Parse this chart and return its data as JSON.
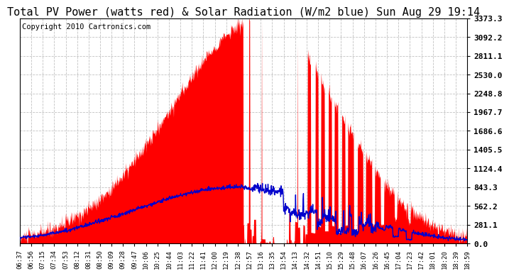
{
  "title": "Total PV Power (watts red) & Solar Radiation (W/m2 blue) Sun Aug 29 19:14",
  "copyright": "Copyright 2010 Cartronics.com",
  "y_max": 3373.3,
  "y_min": 0.0,
  "y_ticks": [
    0.0,
    281.1,
    562.2,
    843.3,
    1124.4,
    1405.5,
    1686.6,
    1967.7,
    2248.8,
    2530.0,
    2811.1,
    3092.2,
    3373.3
  ],
  "x_labels": [
    "06:37",
    "06:56",
    "07:15",
    "07:34",
    "07:53",
    "08:12",
    "08:31",
    "08:50",
    "09:09",
    "09:28",
    "09:47",
    "10:06",
    "10:25",
    "10:44",
    "11:03",
    "11:22",
    "11:41",
    "12:00",
    "12:19",
    "12:38",
    "12:57",
    "13:16",
    "13:35",
    "13:54",
    "14:13",
    "14:32",
    "14:51",
    "15:10",
    "15:29",
    "15:48",
    "16:07",
    "16:26",
    "16:45",
    "17:04",
    "17:23",
    "17:42",
    "18:01",
    "18:20",
    "18:39",
    "18:59"
  ],
  "bg_color": "#ffffff",
  "plot_bg_color": "#ffffff",
  "grid_color": "#bbbbbb",
  "red_color": "#ff0000",
  "blue_color": "#0000cc",
  "fill_color": "#ff0000",
  "title_fontsize": 11,
  "copyright_fontsize": 7.5
}
